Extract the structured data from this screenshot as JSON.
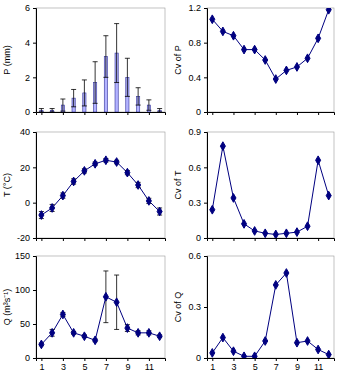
{
  "chart_data": [
    {
      "type": "bar",
      "y_label": "P (mm)",
      "x": [
        1,
        2,
        3,
        4,
        5,
        6,
        7,
        8,
        9,
        10,
        11,
        12
      ],
      "values": [
        0.1,
        0.1,
        0.4,
        0.8,
        1.1,
        1.7,
        3.2,
        3.4,
        2.0,
        0.9,
        0.4,
        0.1
      ],
      "errors": [
        0.1,
        0.1,
        0.35,
        0.5,
        0.75,
        1.2,
        1.2,
        1.7,
        1.1,
        0.5,
        0.3,
        0.1
      ],
      "color": "#9999ff",
      "xlim": [
        0.5,
        12.5
      ],
      "xticks": [
        1,
        3,
        5,
        7,
        9,
        11
      ],
      "ylim": [
        0,
        6
      ],
      "yticks": [
        0,
        2,
        4,
        6
      ],
      "tick_labels": "y"
    },
    {
      "type": "line",
      "y_label": "Cv of P",
      "x": [
        1,
        2,
        3,
        4,
        5,
        6,
        7,
        8,
        9,
        10,
        11,
        12
      ],
      "values": [
        1.07,
        0.93,
        0.88,
        0.72,
        0.72,
        0.6,
        0.38,
        0.48,
        0.52,
        0.62,
        0.85,
        1.18
      ],
      "color": "#000080",
      "marker": "diamond",
      "xlim": [
        0.5,
        12.5
      ],
      "xticks": [
        1,
        3,
        5,
        7,
        9,
        11
      ],
      "ylim": [
        0,
        1.2
      ],
      "yticks": [
        0,
        0.4,
        0.8,
        1.2
      ],
      "tick_labels": "y"
    },
    {
      "type": "line",
      "y_label": "T (°C)",
      "x": [
        1,
        2,
        3,
        4,
        5,
        6,
        7,
        8,
        9,
        10,
        11,
        12
      ],
      "values": [
        -7,
        -3,
        4,
        12,
        18,
        22,
        24,
        23,
        17,
        10,
        1,
        -5
      ],
      "errors": [
        2,
        2,
        1.5,
        1.5,
        1.2,
        1,
        1,
        1,
        1.2,
        1.5,
        1.5,
        2
      ],
      "color": "#000080",
      "marker": "diamond",
      "xlim": [
        0.5,
        12.5
      ],
      "xticks": [
        1,
        3,
        5,
        7,
        9,
        11
      ],
      "ylim": [
        -20,
        40
      ],
      "yticks": [
        -20,
        0,
        20,
        40
      ],
      "tick_labels": "y"
    },
    {
      "type": "line",
      "y_label": "Cv of T",
      "x": [
        1,
        2,
        3,
        4,
        5,
        6,
        7,
        8,
        9,
        10,
        11,
        12
      ],
      "values": [
        0.24,
        0.78,
        0.34,
        0.12,
        0.06,
        0.04,
        0.03,
        0.04,
        0.05,
        0.1,
        0.66,
        0.36
      ],
      "color": "#000080",
      "marker": "diamond",
      "xlim": [
        0.5,
        12.5
      ],
      "xticks": [
        1,
        3,
        5,
        7,
        9,
        11
      ],
      "ylim": [
        0,
        0.9
      ],
      "yticks": [
        0,
        0.3,
        0.6,
        0.9
      ],
      "tick_labels": "y"
    },
    {
      "type": "line",
      "y_label": "Q (m³s⁻¹)",
      "x": [
        1,
        2,
        3,
        4,
        5,
        6,
        7,
        8,
        9,
        10,
        11,
        12
      ],
      "values": [
        20,
        37,
        64,
        37,
        32,
        26,
        90,
        82,
        44,
        37,
        37,
        32
      ],
      "errors": [
        2,
        5,
        3,
        2,
        2,
        2,
        38,
        40,
        5,
        3,
        3,
        2
      ],
      "color": "#000080",
      "marker": "diamond",
      "xlim": [
        0.5,
        12.5
      ],
      "xticks": [
        1,
        3,
        5,
        7,
        9,
        11
      ],
      "ylim": [
        0,
        150
      ],
      "yticks": [
        0,
        50,
        100,
        150
      ]
    },
    {
      "type": "line",
      "y_label": "Cv of Q",
      "x": [
        1,
        2,
        3,
        4,
        5,
        6,
        7,
        8,
        9,
        10,
        11,
        12
      ],
      "values": [
        0.03,
        0.12,
        0.04,
        0.01,
        0.01,
        0.1,
        0.43,
        0.5,
        0.09,
        0.1,
        0.05,
        0.02
      ],
      "color": "#000080",
      "marker": "diamond",
      "xlim": [
        0.5,
        12.5
      ],
      "xticks": [
        1,
        3,
        5,
        7,
        9,
        11
      ],
      "ylim": [
        0,
        0.6
      ],
      "yticks": [
        0,
        0.3,
        0.6
      ]
    }
  ]
}
